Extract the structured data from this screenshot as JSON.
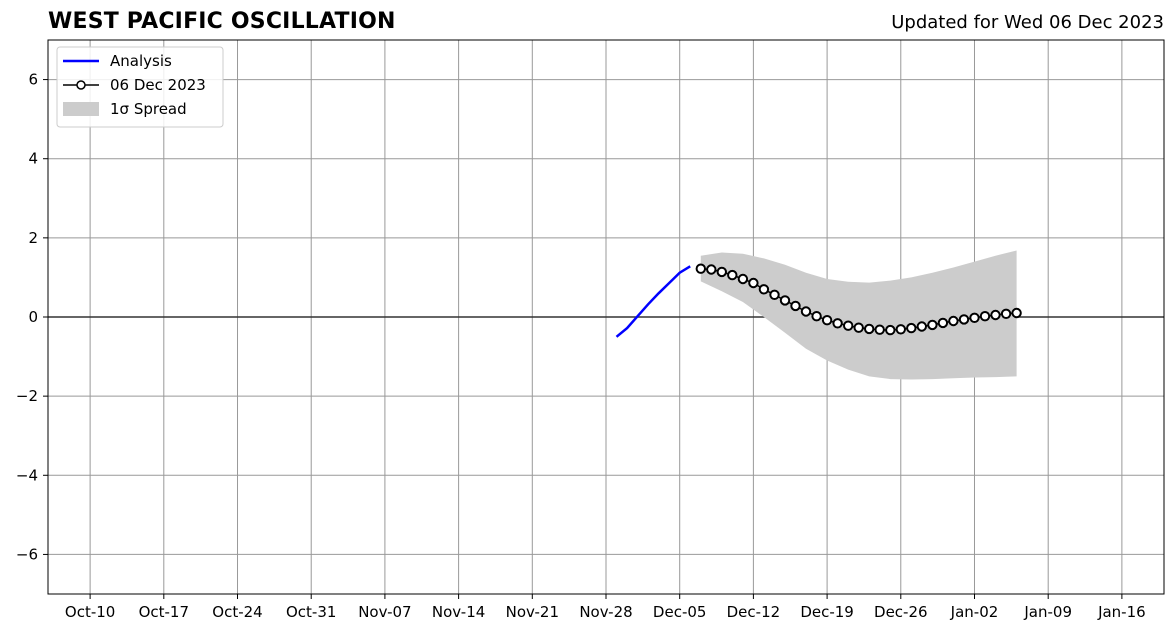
{
  "header": {
    "title": "WEST PACIFIC OSCILLATION",
    "updated": "Updated for Wed 06 Dec 2023"
  },
  "chart_data": {
    "type": "line",
    "title": "WEST PACIFIC OSCILLATION",
    "subtitle": "Updated for Wed 06 Dec 2023",
    "xlabel": "",
    "ylabel": "",
    "x_type": "date",
    "xlim": [
      "2023-10-06",
      "2024-01-20"
    ],
    "ylim": [
      -7,
      7
    ],
    "yticks": [
      -6,
      -4,
      -2,
      0,
      2,
      4,
      6
    ],
    "ytick_labels": [
      "−6",
      "−4",
      "−2",
      "0",
      "2",
      "4",
      "6"
    ],
    "xticks": [
      "2023-10-10",
      "2023-10-17",
      "2023-10-24",
      "2023-10-31",
      "2023-11-07",
      "2023-11-14",
      "2023-11-21",
      "2023-11-28",
      "2023-12-05",
      "2023-12-12",
      "2023-12-19",
      "2023-12-26",
      "2024-01-02",
      "2024-01-09",
      "2024-01-16"
    ],
    "xtick_labels": [
      "Oct-10",
      "Oct-17",
      "Oct-24",
      "Oct-31",
      "Nov-07",
      "Nov-14",
      "Nov-21",
      "Nov-28",
      "Dec-05",
      "Dec-12",
      "Dec-19",
      "Dec-26",
      "Jan-02",
      "Jan-09",
      "Jan-16"
    ],
    "grid": true,
    "zero_line": true,
    "legend_position": "top-left",
    "colors": {
      "analysis": "#0000ff",
      "forecast": "#000000",
      "spread": "#cccccc",
      "grid": "#999999"
    },
    "series": [
      {
        "name": "Analysis",
        "style": "line",
        "x": [
          "2023-11-29",
          "2023-11-30",
          "2023-12-01",
          "2023-12-02",
          "2023-12-03",
          "2023-12-04",
          "2023-12-05",
          "2023-12-06"
        ],
        "y": [
          -0.5,
          -0.28,
          0.02,
          0.32,
          0.6,
          0.86,
          1.12,
          1.28
        ]
      },
      {
        "name": "06 Dec 2023",
        "style": "line-markers",
        "x": [
          "2023-12-07",
          "2023-12-08",
          "2023-12-09",
          "2023-12-10",
          "2023-12-11",
          "2023-12-12",
          "2023-12-13",
          "2023-12-14",
          "2023-12-15",
          "2023-12-16",
          "2023-12-17",
          "2023-12-18",
          "2023-12-19",
          "2023-12-20",
          "2023-12-21",
          "2023-12-22",
          "2023-12-23",
          "2023-12-24",
          "2023-12-25",
          "2023-12-26",
          "2023-12-27",
          "2023-12-28",
          "2023-12-29",
          "2023-12-30",
          "2023-12-31",
          "2024-01-01",
          "2024-01-02",
          "2024-01-03",
          "2024-01-04",
          "2024-01-05",
          "2024-01-06"
        ],
        "y": [
          1.22,
          1.2,
          1.14,
          1.06,
          0.96,
          0.86,
          0.7,
          0.56,
          0.42,
          0.28,
          0.14,
          0.02,
          -0.08,
          -0.16,
          -0.22,
          -0.27,
          -0.3,
          -0.32,
          -0.33,
          -0.31,
          -0.28,
          -0.24,
          -0.2,
          -0.15,
          -0.1,
          -0.06,
          -0.02,
          0.02,
          0.05,
          0.08,
          0.1
        ]
      },
      {
        "name": "1σ Spread",
        "style": "band",
        "x": [
          "2023-12-07",
          "2023-12-09",
          "2023-12-11",
          "2023-12-13",
          "2023-12-15",
          "2023-12-17",
          "2023-12-19",
          "2023-12-21",
          "2023-12-23",
          "2023-12-25",
          "2023-12-27",
          "2023-12-29",
          "2023-12-31",
          "2024-01-02",
          "2024-01-04",
          "2024-01-06"
        ],
        "upper": [
          1.55,
          1.63,
          1.6,
          1.48,
          1.32,
          1.12,
          0.96,
          0.89,
          0.87,
          0.92,
          1.0,
          1.12,
          1.25,
          1.4,
          1.55,
          1.68
        ],
        "lower": [
          0.9,
          0.65,
          0.38,
          0.0,
          -0.4,
          -0.8,
          -1.1,
          -1.33,
          -1.5,
          -1.57,
          -1.58,
          -1.57,
          -1.55,
          -1.53,
          -1.52,
          -1.5
        ]
      }
    ],
    "legend": [
      {
        "label": "Analysis",
        "kind": "line",
        "color": "#0000ff"
      },
      {
        "label": "06 Dec 2023",
        "kind": "line-marker",
        "color": "#000000"
      },
      {
        "label": "1σ Spread",
        "kind": "patch",
        "color": "#cccccc"
      }
    ]
  }
}
